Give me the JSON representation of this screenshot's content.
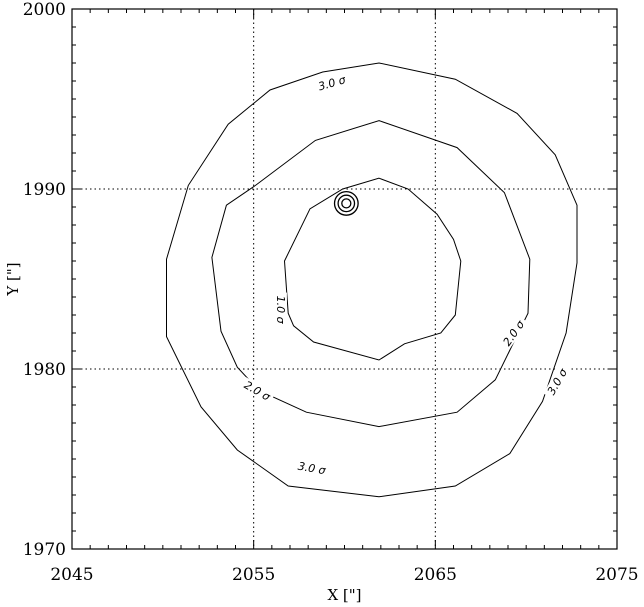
{
  "chart_data": {
    "type": "contour",
    "xlabel": "X [\"]",
    "ylabel": "Y [\"]",
    "xlim": [
      2045,
      2075
    ],
    "ylim": [
      1970,
      2000
    ],
    "xticks": [
      {
        "value": 2045,
        "label": "2045"
      },
      {
        "value": 2055,
        "label": "2055"
      },
      {
        "value": 2065,
        "label": "2065"
      },
      {
        "value": 2075,
        "label": "2075"
      }
    ],
    "yticks": [
      {
        "value": 1970,
        "label": "1970"
      },
      {
        "value": 1980,
        "label": "1980"
      },
      {
        "value": 1990,
        "label": "1990"
      },
      {
        "value": 2000,
        "label": "2000"
      }
    ],
    "grid": {
      "x": [
        2055,
        2065
      ],
      "y": [
        1980,
        1990
      ],
      "style": "dotted"
    },
    "contours": [
      {
        "name": "3.0 σ",
        "points": [
          [
            2061.9,
            1997
          ],
          [
            2066.1,
            1996.1
          ],
          [
            2069.5,
            1994.2
          ],
          [
            2071.6,
            1991.9
          ],
          [
            2072.8,
            1989.1
          ],
          [
            2072.8,
            1985.9
          ],
          [
            2072.2,
            1982
          ],
          [
            2070.9,
            1978.2
          ],
          [
            2069.1,
            1975.3
          ],
          [
            2066.1,
            1973.5
          ],
          [
            2061.9,
            1972.9
          ],
          [
            2056.9,
            1973.5
          ],
          [
            2054.1,
            1975.5
          ],
          [
            2052.1,
            1977.9
          ],
          [
            2050.2,
            1981.8
          ],
          [
            2050.2,
            1986.1
          ],
          [
            2051.4,
            1990.2
          ],
          [
            2053.6,
            1993.6
          ],
          [
            2055.9,
            1995.5
          ],
          [
            2058.8,
            1996.5
          ]
        ],
        "labels": [
          {
            "text": "3.0 σ",
            "x": 2059.3,
            "y": 1995.9,
            "angle": -16
          },
          {
            "text": "3.0 σ",
            "x": 2071.7,
            "y": 1979.3,
            "angle": -60
          },
          {
            "text": "3.0 σ",
            "x": 2058.2,
            "y": 1974.5,
            "angle": 10
          }
        ]
      },
      {
        "name": "2.0 σ",
        "points": [
          [
            2061.9,
            1993.8
          ],
          [
            2066.2,
            1992.3
          ],
          [
            2068.8,
            1989.8
          ],
          [
            2070.2,
            1986.1
          ],
          [
            2070.1,
            1983.1
          ],
          [
            2068.3,
            1979.4
          ],
          [
            2066.2,
            1977.6
          ],
          [
            2061.9,
            1976.8
          ],
          [
            2057.9,
            1977.6
          ],
          [
            2055.3,
            1978.8
          ],
          [
            2054.1,
            1980.1
          ],
          [
            2053.2,
            1982.1
          ],
          [
            2052.7,
            1986.2
          ],
          [
            2053.5,
            1989.1
          ],
          [
            2055.1,
            1990.2
          ],
          [
            2058.4,
            1992.7
          ]
        ],
        "labels": [
          {
            "text": "2.0 σ",
            "x": 2069.3,
            "y": 1982.0,
            "angle": -55
          },
          {
            "text": "2.0 σ",
            "x": 2055.2,
            "y": 1978.8,
            "angle": 30
          }
        ]
      },
      {
        "name": "1.0 σ",
        "points": [
          [
            2061.9,
            1990.6
          ],
          [
            2063.5,
            1990
          ],
          [
            2065.1,
            1988.6
          ],
          [
            2066.0,
            1987.2
          ],
          [
            2066.4,
            1986
          ],
          [
            2066.1,
            1983
          ],
          [
            2065.3,
            1982
          ],
          [
            2063.3,
            1981.4
          ],
          [
            2061.9,
            1980.5
          ],
          [
            2058.3,
            1981.5
          ],
          [
            2057.2,
            1982.4
          ],
          [
            2056.9,
            1983.1
          ],
          [
            2056.7,
            1986
          ],
          [
            2058.1,
            1988.9
          ],
          [
            2059.9,
            1990
          ]
        ],
        "labels": [
          {
            "text": "1.0 σ",
            "x": 2056.5,
            "y": 1983.3,
            "angle": 90
          }
        ]
      }
    ],
    "marker": {
      "x": 2060.1,
      "y": 1989.2,
      "radii": [
        0.65,
        0.45,
        0.25
      ]
    }
  }
}
